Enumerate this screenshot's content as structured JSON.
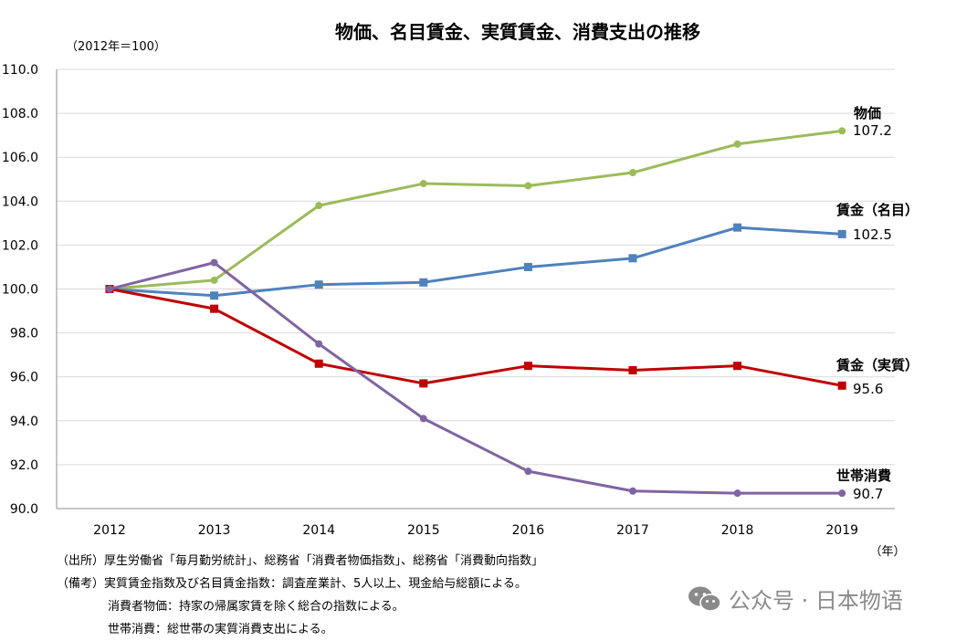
{
  "chart_data": {
    "type": "line",
    "title": "物価、名目賃金、実質賃金、消費支出の推移",
    "base_note": "（2012年＝100）",
    "xlabel": "（年）",
    "ylabel": "",
    "categories": [
      "2012",
      "2013",
      "2014",
      "2015",
      "2016",
      "2017",
      "2018",
      "2019"
    ],
    "ylim": [
      90,
      110
    ],
    "yticks": [
      "90.0",
      "92.0",
      "94.0",
      "96.0",
      "98.0",
      "100.0",
      "102.0",
      "104.0",
      "106.0",
      "108.0",
      "110.0"
    ],
    "grid": true,
    "series": [
      {
        "name": "物価",
        "label_value": "107.2",
        "color": "#9bbb59",
        "marker": "circle",
        "values": [
          100.0,
          100.4,
          103.8,
          104.8,
          104.7,
          105.3,
          106.6,
          107.2
        ]
      },
      {
        "name": "賃金（名目）",
        "label_value": "102.5",
        "color": "#4f81bd",
        "marker": "square",
        "values": [
          100.0,
          99.7,
          100.2,
          100.3,
          101.0,
          101.4,
          102.8,
          102.5
        ]
      },
      {
        "name": "賃金（実質）",
        "label_value": "95.6",
        "color": "#c00000",
        "marker": "square",
        "values": [
          100.0,
          99.1,
          96.6,
          95.7,
          96.5,
          96.3,
          96.5,
          95.6
        ]
      },
      {
        "name": "世帯消費",
        "label_value": "90.7",
        "color": "#8064a2",
        "marker": "circle",
        "values": [
          100.0,
          101.2,
          97.5,
          94.1,
          91.7,
          90.8,
          90.7,
          90.7
        ]
      }
    ]
  },
  "notes": {
    "source": "（出所）厚生労働省「毎月勤労統計」、総務省「消費者物価指数」、総務省「消費動向指数」",
    "remark1": "（備考）実質賃金指数及び名目賃金指数：調査産業計、5人以上、現金給与総額による。",
    "remark2": "消費者物価：持家の帰属家賃を除く総合の指数による。",
    "remark3": "世帯消費：総世帯の実質消費支出による。"
  },
  "watermark": {
    "text": "公众号 · 日本物语",
    "icon": "wechat-icon",
    "color": "#8a8a8a"
  }
}
